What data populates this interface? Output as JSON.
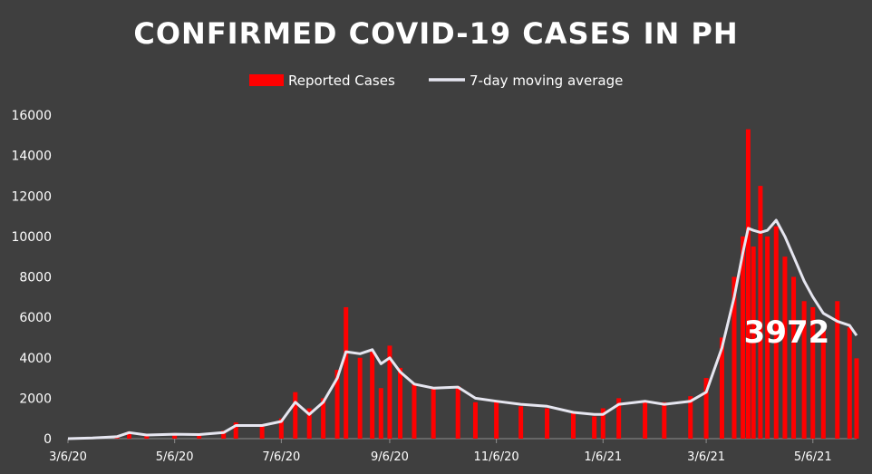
{
  "chart_data": {
    "type": "bar",
    "title": "CONFIRMED COVID-19 CASES IN PH",
    "xlabel": "",
    "ylabel": "",
    "ylim": [
      0,
      16000
    ],
    "yticks": [
      0,
      2000,
      4000,
      6000,
      8000,
      10000,
      12000,
      14000,
      16000
    ],
    "x_start": "3/6/20",
    "x_end": "5/31/21",
    "xticks": [
      "3/6/20",
      "5/6/20",
      "7/6/20",
      "9/6/20",
      "11/6/20",
      "1/6/21",
      "3/6/21",
      "5/6/21"
    ],
    "grid": false,
    "legend_position": "top-center",
    "annotation": "3972",
    "colors": {
      "bars": "#ff0000",
      "line": "#e6e6f0",
      "background": "#3f3f3f",
      "text": "#ffffff"
    },
    "series": [
      {
        "name": "Reported Cases",
        "kind": "bar",
        "x": [
          "3/6/20",
          "3/20/20",
          "4/3/20",
          "4/10/20",
          "4/20/20",
          "5/6/20",
          "5/20/20",
          "6/3/20",
          "6/10/20",
          "6/25/20",
          "7/6/20",
          "7/14/20",
          "7/22/20",
          "7/30/20",
          "8/7/20",
          "8/12/20",
          "8/20/20",
          "8/27/20",
          "9/1/20",
          "9/6/20",
          "9/12/20",
          "9/20/20",
          "10/1/20",
          "10/15/20",
          "10/25/20",
          "11/6/20",
          "11/20/20",
          "12/5/20",
          "12/20/20",
          "1/1/21",
          "1/6/21",
          "1/15/21",
          "1/30/21",
          "2/10/21",
          "2/25/21",
          "3/6/21",
          "3/15/21",
          "3/22/21",
          "3/27/21",
          "3/30/21",
          "4/2/21",
          "4/6/21",
          "4/10/21",
          "4/15/21",
          "4/20/21",
          "4/25/21",
          "5/1/21",
          "5/6/21",
          "5/12/21",
          "5/20/21",
          "5/27/21",
          "5/31/21"
        ],
        "values": [
          0,
          50,
          150,
          350,
          200,
          250,
          200,
          400,
          800,
          700,
          1000,
          2300,
          1500,
          2000,
          3400,
          6500,
          4000,
          4300,
          2500,
          4600,
          3500,
          2700,
          2500,
          2600,
          1800,
          1900,
          1600,
          1500,
          1300,
          1100,
          1500,
          2000,
          1900,
          1800,
          2100,
          3000,
          5000,
          8000,
          10000,
          15300,
          9500,
          12500,
          10000,
          10500,
          9000,
          8000,
          6800,
          6500,
          5500,
          6800,
          5500,
          3972
        ]
      },
      {
        "name": "7-day moving average",
        "kind": "line",
        "x": [
          "3/6/20",
          "3/20/20",
          "4/3/20",
          "4/10/20",
          "4/20/20",
          "5/6/20",
          "5/20/20",
          "6/3/20",
          "6/10/20",
          "6/25/20",
          "7/6/20",
          "7/14/20",
          "7/22/20",
          "7/30/20",
          "8/7/20",
          "8/12/20",
          "8/20/20",
          "8/27/20",
          "9/1/20",
          "9/6/20",
          "9/12/20",
          "9/20/20",
          "10/1/20",
          "10/15/20",
          "10/25/20",
          "11/6/20",
          "11/20/20",
          "12/5/20",
          "12/20/20",
          "1/1/21",
          "1/6/21",
          "1/15/21",
          "1/30/21",
          "2/10/21",
          "2/25/21",
          "3/6/21",
          "3/15/21",
          "3/22/21",
          "3/27/21",
          "3/30/21",
          "4/2/21",
          "4/6/21",
          "4/10/21",
          "4/15/21",
          "4/20/21",
          "4/25/21",
          "5/1/21",
          "5/6/21",
          "5/12/21",
          "5/20/21",
          "5/27/21",
          "5/31/21"
        ],
        "values": [
          0,
          30,
          100,
          300,
          180,
          220,
          200,
          300,
          650,
          650,
          850,
          1800,
          1200,
          1800,
          3000,
          4300,
          4200,
          4400,
          3700,
          4000,
          3300,
          2700,
          2500,
          2550,
          2000,
          1850,
          1700,
          1600,
          1300,
          1200,
          1200,
          1700,
          1850,
          1700,
          1850,
          2300,
          4500,
          7000,
          9200,
          10400,
          10300,
          10200,
          10300,
          10800,
          10000,
          9000,
          7800,
          7000,
          6200,
          5800,
          5600,
          5100
        ]
      }
    ]
  }
}
